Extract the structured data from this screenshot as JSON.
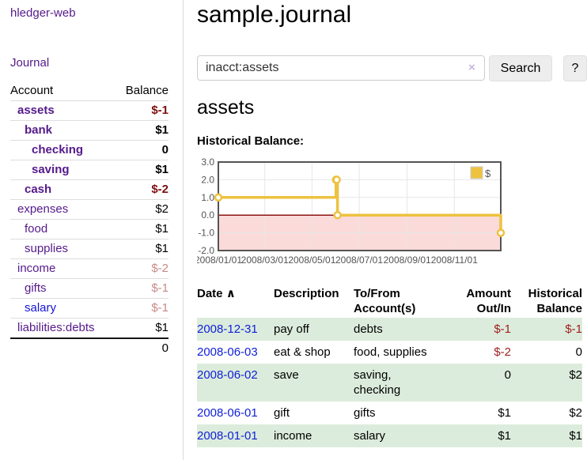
{
  "sidebar": {
    "brand": "hledger-web",
    "journal_link": "Journal",
    "accounts_table": {
      "headers": {
        "account": "Account",
        "balance": "Balance"
      },
      "rows": [
        {
          "name": "assets",
          "indent": 0,
          "bold": true,
          "balance": "$-1",
          "balance_style": "neg-strong"
        },
        {
          "name": "bank",
          "indent": 1,
          "bold": true,
          "balance": "$1",
          "balance_style": "pos"
        },
        {
          "name": "checking",
          "indent": 2,
          "bold": true,
          "balance": "0",
          "balance_style": "pos"
        },
        {
          "name": "saving",
          "indent": 2,
          "bold": true,
          "balance": "$1",
          "balance_style": "pos"
        },
        {
          "name": "cash",
          "indent": 1,
          "bold": true,
          "balance": "$-2",
          "balance_style": "neg-strong"
        },
        {
          "name": "expenses",
          "indent": 0,
          "bold": false,
          "balance": "$2",
          "balance_style": "pos"
        },
        {
          "name": "food",
          "indent": 1,
          "bold": false,
          "balance": "$1",
          "balance_style": "pos"
        },
        {
          "name": "supplies",
          "indent": 1,
          "bold": false,
          "balance": "$1",
          "balance_style": "pos"
        },
        {
          "name": "income",
          "indent": 0,
          "bold": false,
          "balance": "$-2",
          "balance_style": "neg-dim"
        },
        {
          "name": "gifts",
          "indent": 1,
          "bold": false,
          "balance": "$-1",
          "balance_style": "neg-dim"
        },
        {
          "name": "salary",
          "indent": 1,
          "bold": false,
          "balance": "$-1",
          "balance_style": "neg-dim",
          "link_style": "unvisited"
        },
        {
          "name": "liabilities:debts",
          "indent": 0,
          "bold": false,
          "balance": "$1",
          "balance_style": "pos"
        }
      ],
      "total": "0"
    }
  },
  "header": {
    "title": "sample.journal"
  },
  "search": {
    "value": "inacct:assets",
    "clear_icon": "×",
    "button": "Search",
    "help_button": "?"
  },
  "account_page": {
    "heading": "assets",
    "chart_label": "Historical Balance:"
  },
  "chart_data": {
    "type": "line",
    "title": "Historical Balance",
    "step": true,
    "legend": [
      {
        "label": "$",
        "color": "#edc240"
      }
    ],
    "series": [
      {
        "name": "$",
        "color": "#edc240",
        "points": [
          [
            "2008-01-01",
            1
          ],
          [
            "2008-06-01",
            2
          ],
          [
            "2008-06-02",
            2
          ],
          [
            "2008-06-03",
            0
          ],
          [
            "2008-12-31",
            -1
          ]
        ]
      }
    ],
    "ylim": [
      -2,
      3
    ],
    "yticks": [
      3,
      2,
      1,
      0,
      -1,
      -2
    ],
    "xticks": [
      {
        "label": "2008/01/01",
        "day": 0
      },
      {
        "label": "2008/03/01",
        "day": 60
      },
      {
        "label": "2008/05/01",
        "day": 121
      },
      {
        "label": "2008/07/01",
        "day": 182
      },
      {
        "label": "2008/09/01",
        "day": 244
      },
      {
        "label": "2008/11/01",
        "day": 305
      }
    ],
    "xrange_days": [
      0,
      365
    ],
    "grid": true,
    "legend_position": "top-right",
    "negative_region_fill": "#fbdada",
    "zero_line_color": "#8f1414",
    "grid_color": "#e6e6e6",
    "border_color": "#545454",
    "label_color": "#545454"
  },
  "register": {
    "headers": {
      "date": "Date",
      "sort_icon": "∧",
      "description": "Description",
      "account": "To/From\nAccount(s)",
      "amount": "Amount\nOut/In",
      "balance": "Historical\nBalance"
    },
    "rows": [
      {
        "date": "2008-12-31",
        "description": "pay off",
        "account": "debts",
        "amount": "$-1",
        "amount_neg": true,
        "balance": "$-1",
        "balance_neg": true,
        "shaded": true
      },
      {
        "date": "2008-06-03",
        "description": "eat & shop",
        "account": "food, supplies",
        "amount": "$-2",
        "amount_neg": true,
        "balance": "0",
        "balance_neg": false,
        "shaded": false
      },
      {
        "date": "2008-06-02",
        "description": "save",
        "account": "saving,\nchecking",
        "amount": "0",
        "amount_neg": false,
        "balance": "$2",
        "balance_neg": false,
        "shaded": true
      },
      {
        "date": "2008-06-01",
        "description": "gift",
        "account": "gifts",
        "amount": "$1",
        "amount_neg": false,
        "balance": "$2",
        "balance_neg": false,
        "shaded": false
      },
      {
        "date": "2008-01-01",
        "description": "income",
        "account": "salary",
        "amount": "$1",
        "amount_neg": false,
        "balance": "$1",
        "balance_neg": false,
        "shaded": true
      }
    ]
  },
  "colors": {
    "link_purple": "#551a8b",
    "link_blue": "#0f1fd8",
    "negative_strong": "#7d0f0f",
    "negative_dim": "#c98989",
    "negative_table": "#9e1d1d",
    "row_green": "#dcecdc",
    "series_gold": "#edc240"
  }
}
